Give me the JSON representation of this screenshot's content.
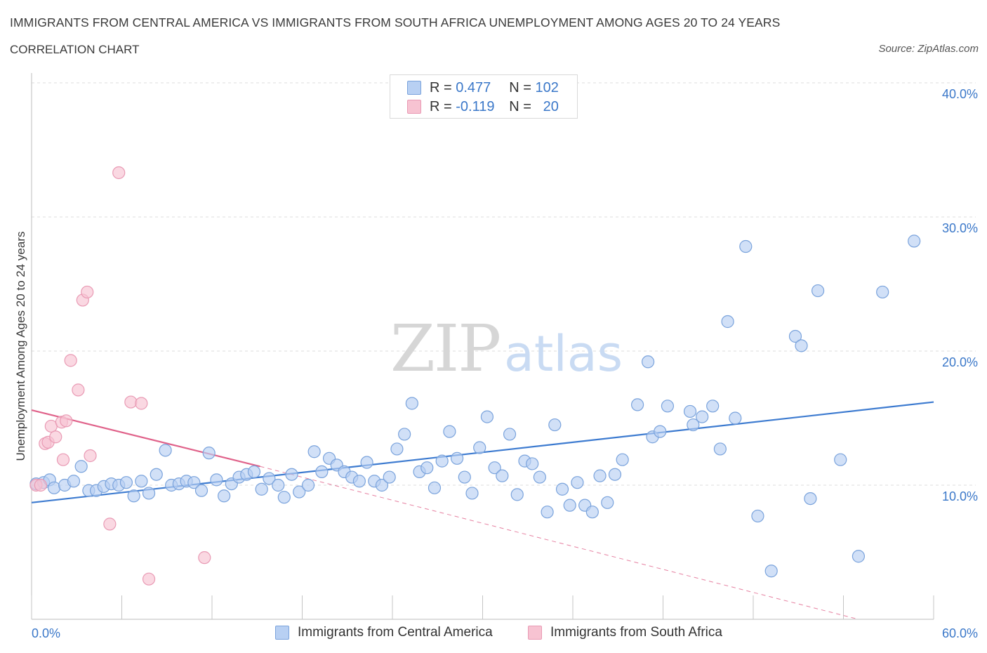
{
  "header": {
    "title": "IMMIGRANTS FROM CENTRAL AMERICA VS IMMIGRANTS FROM SOUTH AFRICA UNEMPLOYMENT AMONG AGES 20 TO 24 YEARS",
    "subtitle": "CORRELATION CHART",
    "source": "Source: ZipAtlas.com"
  },
  "watermark": {
    "zip": "ZIP",
    "atlas": "atlas"
  },
  "legend": {
    "rows": [
      {
        "r_label": "R =",
        "r_value": "0.477",
        "n_label": "N =",
        "n_value": "102"
      },
      {
        "r_label": "R =",
        "r_value": "-0.119",
        "n_label": "N =",
        "n_value": "20"
      }
    ]
  },
  "chart_data": {
    "type": "scatter",
    "ylabel": "Unemployment Among Ages 20 to 24 years",
    "xlim": [
      0,
      60
    ],
    "ylim": [
      0,
      40
    ],
    "x_tick_labels": [
      "0.0%",
      "60.0%"
    ],
    "y_ticks": [
      10,
      20,
      30,
      40
    ],
    "y_tick_labels": [
      "10.0%",
      "20.0%",
      "30.0%",
      "40.0%"
    ],
    "grid": "horizontal dashed",
    "colors": {
      "blue_fill": "#b8d0f3",
      "blue_stroke": "#7aa3dc",
      "blue_line": "#3d7bd0",
      "pink_fill": "#f7c3d2",
      "pink_stroke": "#e99ab4",
      "pink_line": "#e0628a",
      "axis_text": "#3b78c9"
    },
    "series": [
      {
        "name": "Immigrants from Central America",
        "color": "blue",
        "trend": {
          "x0": 0,
          "y0": 8.7,
          "x1": 60,
          "y1": 16.2
        },
        "points": [
          [
            0.3,
            10.1
          ],
          [
            0.8,
            10.2
          ],
          [
            1.2,
            10.4
          ],
          [
            1.5,
            9.8
          ],
          [
            2.2,
            10.0
          ],
          [
            2.8,
            10.3
          ],
          [
            3.3,
            11.4
          ],
          [
            3.8,
            9.6
          ],
          [
            4.3,
            9.6
          ],
          [
            4.8,
            9.9
          ],
          [
            5.3,
            10.1
          ],
          [
            5.8,
            10.0
          ],
          [
            6.3,
            10.2
          ],
          [
            6.8,
            9.2
          ],
          [
            7.3,
            10.3
          ],
          [
            7.8,
            9.4
          ],
          [
            8.3,
            10.8
          ],
          [
            8.9,
            12.6
          ],
          [
            9.3,
            10.0
          ],
          [
            9.8,
            10.1
          ],
          [
            10.3,
            10.3
          ],
          [
            10.8,
            10.2
          ],
          [
            11.3,
            9.6
          ],
          [
            11.8,
            12.4
          ],
          [
            12.3,
            10.4
          ],
          [
            12.8,
            9.2
          ],
          [
            13.3,
            10.1
          ],
          [
            13.8,
            10.6
          ],
          [
            14.3,
            10.8
          ],
          [
            14.8,
            11.0
          ],
          [
            15.3,
            9.7
          ],
          [
            15.8,
            10.5
          ],
          [
            16.4,
            10.0
          ],
          [
            16.8,
            9.1
          ],
          [
            17.3,
            10.8
          ],
          [
            17.8,
            9.5
          ],
          [
            18.4,
            10.0
          ],
          [
            18.8,
            12.5
          ],
          [
            19.3,
            11.0
          ],
          [
            19.8,
            12.0
          ],
          [
            20.3,
            11.5
          ],
          [
            20.8,
            11.0
          ],
          [
            21.3,
            10.6
          ],
          [
            21.8,
            10.3
          ],
          [
            22.3,
            11.7
          ],
          [
            22.8,
            10.3
          ],
          [
            23.3,
            10.0
          ],
          [
            23.8,
            10.6
          ],
          [
            24.3,
            12.7
          ],
          [
            24.8,
            13.8
          ],
          [
            25.3,
            16.1
          ],
          [
            25.8,
            11.0
          ],
          [
            26.3,
            11.3
          ],
          [
            26.8,
            9.8
          ],
          [
            27.3,
            11.8
          ],
          [
            27.8,
            14.0
          ],
          [
            28.3,
            12.0
          ],
          [
            28.8,
            10.6
          ],
          [
            29.3,
            9.4
          ],
          [
            29.8,
            12.8
          ],
          [
            30.3,
            15.1
          ],
          [
            30.8,
            11.3
          ],
          [
            31.3,
            10.7
          ],
          [
            31.8,
            13.8
          ],
          [
            32.3,
            9.3
          ],
          [
            32.8,
            11.8
          ],
          [
            33.3,
            11.6
          ],
          [
            33.8,
            10.6
          ],
          [
            34.3,
            8.0
          ],
          [
            34.8,
            14.5
          ],
          [
            35.3,
            9.7
          ],
          [
            35.8,
            8.5
          ],
          [
            36.3,
            10.2
          ],
          [
            36.8,
            8.5
          ],
          [
            37.3,
            8.0
          ],
          [
            37.8,
            10.7
          ],
          [
            38.3,
            8.7
          ],
          [
            38.8,
            10.8
          ],
          [
            39.3,
            11.9
          ],
          [
            40.3,
            16.0
          ],
          [
            41.0,
            19.2
          ],
          [
            41.3,
            13.6
          ],
          [
            41.8,
            14.0
          ],
          [
            42.3,
            15.9
          ],
          [
            43.8,
            15.5
          ],
          [
            44.0,
            14.5
          ],
          [
            44.6,
            15.1
          ],
          [
            45.3,
            15.9
          ],
          [
            45.8,
            12.7
          ],
          [
            46.3,
            22.2
          ],
          [
            46.8,
            15.0
          ],
          [
            47.5,
            27.8
          ],
          [
            48.3,
            7.7
          ],
          [
            49.2,
            3.6
          ],
          [
            50.8,
            21.1
          ],
          [
            51.2,
            20.4
          ],
          [
            51.8,
            9.0
          ],
          [
            52.3,
            24.5
          ],
          [
            53.8,
            11.9
          ],
          [
            55.0,
            4.7
          ],
          [
            56.6,
            24.4
          ],
          [
            58.7,
            28.2
          ]
        ]
      },
      {
        "name": "Immigrants from South Africa",
        "color": "pink",
        "trend": {
          "x0": 0,
          "y0": 15.6,
          "x1": 15.2,
          "y1": 11.4,
          "dash_to_x": 55,
          "dash_to_y": 0
        },
        "points": [
          [
            0.3,
            10.0
          ],
          [
            0.6,
            10.0
          ],
          [
            0.9,
            13.1
          ],
          [
            1.1,
            13.2
          ],
          [
            1.3,
            14.4
          ],
          [
            1.6,
            13.6
          ],
          [
            2.0,
            14.7
          ],
          [
            2.1,
            11.9
          ],
          [
            2.3,
            14.8
          ],
          [
            2.6,
            19.3
          ],
          [
            3.1,
            17.1
          ],
          [
            3.4,
            23.8
          ],
          [
            3.7,
            24.4
          ],
          [
            3.9,
            12.2
          ],
          [
            5.2,
            7.1
          ],
          [
            5.8,
            33.3
          ],
          [
            6.6,
            16.2
          ],
          [
            7.3,
            16.1
          ],
          [
            7.8,
            3.0
          ],
          [
            11.5,
            4.6
          ]
        ]
      }
    ]
  },
  "bottom_legend": {
    "items": [
      {
        "label": "Immigrants from Central America"
      },
      {
        "label": "Immigrants from South Africa"
      }
    ]
  }
}
